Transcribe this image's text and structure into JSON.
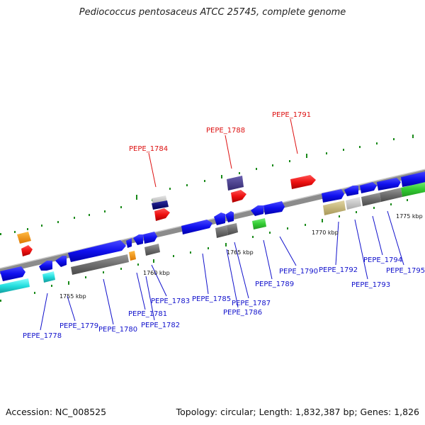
{
  "title": "Pediococcus pentosaceus ATCC 25745, complete genome",
  "footer": {
    "accession": "Accession: NC_008525",
    "summary": "Topology: circular; Length: 1,832,387 bp; Genes: 1,826"
  },
  "scale_labels": [
    "1755 kbp",
    "1760 kbp",
    "1765 kbp",
    "1770 kbp",
    "1775 kbp"
  ],
  "gene_labels": [
    {
      "id": "PEPE_1778",
      "highlight": false
    },
    {
      "id": "PEPE_1779",
      "highlight": false
    },
    {
      "id": "PEPE_1780",
      "highlight": false
    },
    {
      "id": "PEPE_1781",
      "highlight": false
    },
    {
      "id": "PEPE_1782",
      "highlight": false
    },
    {
      "id": "PEPE_1783",
      "highlight": false
    },
    {
      "id": "PEPE_1784",
      "highlight": true
    },
    {
      "id": "PEPE_1785",
      "highlight": false
    },
    {
      "id": "PEPE_1786",
      "highlight": false
    },
    {
      "id": "PEPE_1787",
      "highlight": false
    },
    {
      "id": "PEPE_1788",
      "highlight": true
    },
    {
      "id": "PEPE_1789",
      "highlight": false
    },
    {
      "id": "PEPE_1790",
      "highlight": false
    },
    {
      "id": "PEPE_1791",
      "highlight": true
    },
    {
      "id": "PEPE_1792",
      "highlight": false
    },
    {
      "id": "PEPE_1793",
      "highlight": false
    },
    {
      "id": "PEPE_1794",
      "highlight": false
    },
    {
      "id": "PEPE_1795",
      "highlight": false
    }
  ],
  "colors": {
    "backbone": "#8c8c8c",
    "cds": "#1414e6",
    "highlight_label": "#dd1111",
    "normal_label": "#1111cc",
    "tick": "#1a8a1a",
    "rna_red": "#ee1111",
    "orange": "#ff9900",
    "cyan": "#22dddd",
    "gray": "#6e6e6e",
    "green": "#33cc33",
    "tan": "#c8b878",
    "slate": "#4c3f8f"
  }
}
